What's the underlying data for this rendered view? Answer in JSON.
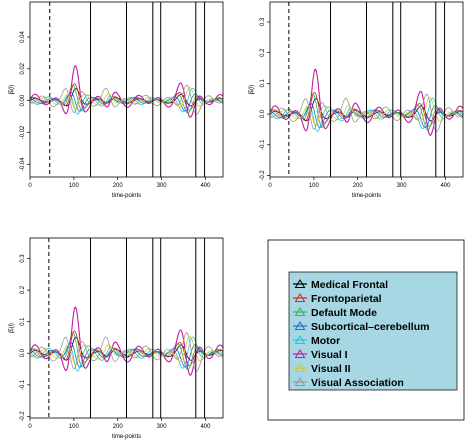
{
  "chart_data": [
    {
      "type": "line",
      "xlabel": "time-points",
      "ylabel": "β̂ⱼ(l)",
      "xlim": [
        0,
        440
      ],
      "ylim": [
        -0.048,
        0.062
      ],
      "xticks": [
        0,
        100,
        200,
        300,
        400
      ],
      "yticks": [
        -0.04,
        -0.02,
        0.0,
        0.02,
        0.04
      ],
      "ytick_labels": [
        "-0.04",
        "-0.02",
        "0.00",
        "0.02",
        "0.04"
      ],
      "dashed_vline": 45,
      "solid_vlines": [
        138,
        220,
        280,
        298,
        378,
        398
      ],
      "amplitude": 0.024
    },
    {
      "type": "line",
      "xlabel": "time-points",
      "ylabel": "β̂ⱼ(l)",
      "xlim": [
        0,
        440
      ],
      "ylim": [
        -0.205,
        0.365
      ],
      "xticks": [
        0,
        100,
        200,
        300,
        400
      ],
      "yticks": [
        -0.2,
        -0.1,
        0.0,
        0.1,
        0.2,
        0.3
      ],
      "ytick_labels": [
        "-0.2",
        "-0.1",
        "0.0",
        "0.1",
        "0.2",
        "0.3"
      ],
      "dashed_vline": 43,
      "solid_vlines": [
        138,
        220,
        280,
        298,
        378,
        398
      ],
      "amplitude": 0.16
    },
    {
      "type": "line",
      "xlabel": "time-points",
      "ylabel": "β̂ⱼ(l)",
      "xlim": [
        0,
        440
      ],
      "ylim": [
        -0.205,
        0.365
      ],
      "xticks": [
        0,
        100,
        200,
        300,
        400
      ],
      "yticks": [
        -0.2,
        -0.1,
        0.0,
        0.1,
        0.2,
        0.3
      ],
      "ytick_labels": [
        "-0.2",
        "-0.1",
        "0.0",
        "0.1",
        "0.2",
        "0.3"
      ],
      "dashed_vline": 43,
      "solid_vlines": [
        138,
        220,
        280,
        298,
        378,
        398
      ],
      "amplitude": 0.16
    }
  ],
  "legend": {
    "background": "#a6d7e3",
    "entries": [
      {
        "label": "Medical Frontal",
        "color": "#000000"
      },
      {
        "label": "Frontoparietal",
        "color": "#d62728"
      },
      {
        "label": "Default Mode",
        "color": "#3cb44b"
      },
      {
        "label": "Subcortical–cerebellum",
        "color": "#1f6fd0"
      },
      {
        "label": "Motor",
        "color": "#22c7d8"
      },
      {
        "label": "Visual I",
        "color": "#c01ba8"
      },
      {
        "label": "Visual II",
        "color": "#e3c61a"
      },
      {
        "label": "Visual Association",
        "color": "#999999"
      }
    ]
  },
  "series_style": [
    {
      "name": "Medical Frontal",
      "color": "#000000",
      "gain": 0.35,
      "phase": 0.0
    },
    {
      "name": "Frontoparietal",
      "color": "#d62728",
      "gain": 0.5,
      "phase": 0.4
    },
    {
      "name": "Default Mode",
      "color": "#3cb44b",
      "gain": 0.55,
      "phase": 0.9
    },
    {
      "name": "Subcortical–cerebellum",
      "color": "#1f6fd0",
      "gain": 0.45,
      "phase": 1.6
    },
    {
      "name": "Motor",
      "color": "#22c7d8",
      "gain": 0.6,
      "phase": 2.3
    },
    {
      "name": "Visual I",
      "color": "#c01ba8",
      "gain": 1.0,
      "phase": 0.15
    },
    {
      "name": "Visual II",
      "color": "#e3c61a",
      "gain": 0.55,
      "phase": 3.1
    },
    {
      "name": "Visual Association",
      "color": "#999999",
      "gain": 0.85,
      "phase": 4.0
    }
  ]
}
